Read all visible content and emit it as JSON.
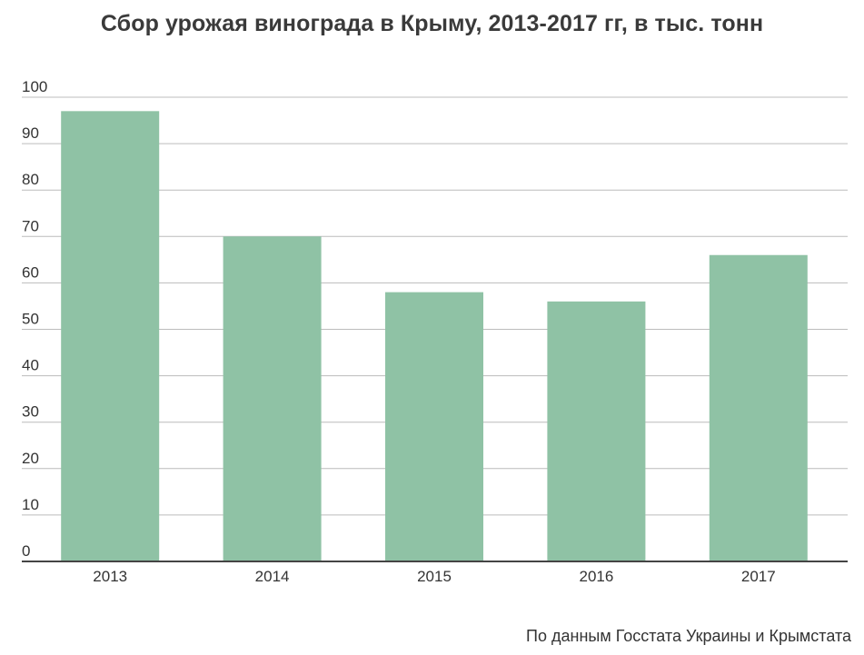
{
  "chart_data": {
    "type": "bar",
    "title": "Сбор урожая винограда в Крыму, 2013-2017 гг, в тыс. тонн",
    "xlabel": "",
    "ylabel": "",
    "categories": [
      "2013",
      "2014",
      "2015",
      "2016",
      "2017"
    ],
    "values": [
      97,
      70,
      58,
      56,
      66
    ],
    "ylim": [
      0,
      100
    ],
    "yticks": [
      "0",
      "10",
      "20",
      "30",
      "40",
      "50",
      "60",
      "70",
      "80",
      "90",
      "100"
    ],
    "grid": true,
    "legend": "none",
    "colors": {
      "bar": "#8fc2a5",
      "grid": "#bcbcbc",
      "axis": "#444444",
      "text": "#333333"
    }
  },
  "source_note": "По данным Госстата Украины и Крымстата"
}
